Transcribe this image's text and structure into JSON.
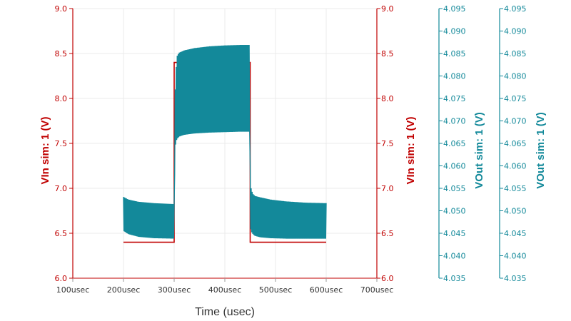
{
  "chart_data": {
    "type": "line",
    "xlabel": "Time (usec)",
    "x_ticks": [
      "100usec",
      "200usec",
      "300usec",
      "400usec",
      "500usec",
      "600usec",
      "700usec"
    ],
    "x_tick_values": [
      100,
      200,
      300,
      400,
      500,
      600,
      700
    ],
    "xlim": [
      100,
      700
    ],
    "grid": true,
    "y_axes": [
      {
        "side": "left",
        "label": "VIn sim: 1 (V)",
        "color": "#c00000",
        "ylim": [
          6.0,
          9.0
        ],
        "ticks": [
          "9.0",
          "8.5",
          "8.0",
          "7.5",
          "7.0",
          "6.5",
          "6.0"
        ],
        "tick_values": [
          9.0,
          8.5,
          8.0,
          7.5,
          7.0,
          6.5,
          6.0
        ]
      },
      {
        "side": "right",
        "label": "VIn sim: 1 (V)",
        "color": "#c00000",
        "ylim": [
          6.0,
          9.0
        ],
        "ticks": [
          "9.0",
          "8.5",
          "8.0",
          "7.5",
          "7.0",
          "6.5",
          "6.0"
        ],
        "tick_values": [
          9.0,
          8.5,
          8.0,
          7.5,
          7.0,
          6.5,
          6.0
        ]
      },
      {
        "side": "right",
        "label": "VOut sim: 1 (V)",
        "color": "#13899a",
        "ylim": [
          4.035,
          4.095
        ],
        "ticks": [
          "4.095",
          "4.090",
          "4.085",
          "4.080",
          "4.075",
          "4.070",
          "4.065",
          "4.060",
          "4.055",
          "4.050",
          "4.045",
          "4.040",
          "4.035"
        ],
        "tick_values": [
          4.095,
          4.09,
          4.085,
          4.08,
          4.075,
          4.07,
          4.065,
          4.06,
          4.055,
          4.05,
          4.045,
          4.04,
          4.035
        ]
      },
      {
        "side": "right",
        "label": "VOut sim: 1 (V)",
        "color": "#13899a",
        "ylim": [
          4.035,
          4.095
        ],
        "ticks": [
          "4.095",
          "4.090",
          "4.085",
          "4.080",
          "4.075",
          "4.070",
          "4.065",
          "4.060",
          "4.055",
          "4.050",
          "4.045",
          "4.040",
          "4.035"
        ],
        "tick_values": [
          4.095,
          4.09,
          4.085,
          4.08,
          4.075,
          4.07,
          4.065,
          4.06,
          4.055,
          4.05,
          4.045,
          4.04,
          4.035
        ]
      }
    ],
    "series": [
      {
        "axis": 0,
        "color": "#c00000",
        "style": "step",
        "x": [
          200,
          300,
          300,
          450,
          450,
          600
        ],
        "y": [
          6.4,
          6.4,
          8.4,
          8.4,
          6.4,
          6.4
        ]
      },
      {
        "axis": 2,
        "color": "#13899a",
        "style": "envelope",
        "ripple_period_usec": 2,
        "upper": {
          "x": [
            200,
            210,
            230,
            260,
            300,
            300.5,
            302,
            304,
            306,
            310,
            320,
            340,
            370,
            400,
            430,
            449,
            450,
            451,
            453,
            456,
            460,
            470,
            490,
            520,
            560,
            600
          ],
          "y": [
            4.0531,
            4.0525,
            4.052,
            4.0517,
            4.0515,
            4.062,
            4.077,
            4.082,
            4.0845,
            4.0852,
            4.0857,
            4.0862,
            4.0866,
            4.0868,
            4.0869,
            4.0869,
            4.06,
            4.0555,
            4.0545,
            4.0537,
            4.0533,
            4.053,
            4.0525,
            4.0521,
            4.0518,
            4.0517
          ]
        },
        "lower": {
          "x": [
            200,
            210,
            230,
            260,
            300,
            300.5,
            302,
            304,
            306,
            310,
            320,
            340,
            370,
            400,
            430,
            449,
            450,
            451,
            453,
            456,
            460,
            470,
            490,
            520,
            560,
            600
          ],
          "y": [
            4.0455,
            4.0448,
            4.0442,
            4.0439,
            4.0438,
            4.055,
            4.064,
            4.0655,
            4.066,
            4.0665,
            4.0669,
            4.0672,
            4.0674,
            4.0675,
            4.0676,
            4.0676,
            4.05,
            4.0459,
            4.0452,
            4.0447,
            4.0444,
            4.0441,
            4.0439,
            4.0438,
            4.0438,
            4.0438
          ]
        }
      }
    ]
  }
}
